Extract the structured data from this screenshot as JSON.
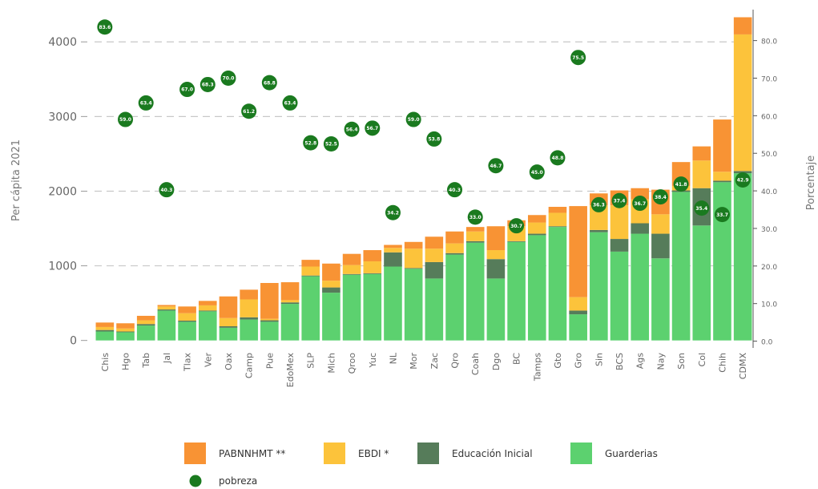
{
  "chart_data": {
    "type": "bar",
    "stacked": true,
    "categories": [
      "Chis",
      "Hgo",
      "Tab",
      "Jal",
      "Tlax",
      "Ver",
      "Oax",
      "Camp",
      "Pue",
      "EdoMex",
      "SLP",
      "Mich",
      "Qroo",
      "Yuc",
      "NL",
      "Mor",
      "Zac",
      "Qro",
      "Coah",
      "Dgo",
      "BC",
      "Tamps",
      "Gto",
      "Gro",
      "Sin",
      "BCS",
      "Ags",
      "Nay",
      "Son",
      "Col",
      "Chih",
      "CDMX"
    ],
    "series": [
      {
        "name": "Guarderias",
        "color": "#5cd16f",
        "values": [
          120,
          110,
          200,
          400,
          250,
          390,
          170,
          280,
          250,
          490,
          860,
          640,
          880,
          890,
          990,
          960,
          830,
          1150,
          1310,
          830,
          1320,
          1410,
          1520,
          350,
          1450,
          1190,
          1430,
          1100,
          1990,
          1540,
          2120,
          2240
        ]
      },
      {
        "name": "Educación Inicial",
        "color": "#567c5a",
        "values": [
          20,
          10,
          20,
          15,
          15,
          10,
          20,
          30,
          20,
          20,
          10,
          70,
          10,
          10,
          190,
          10,
          220,
          20,
          20,
          260,
          10,
          20,
          10,
          50,
          30,
          170,
          140,
          330,
          20,
          500,
          20,
          30
        ]
      },
      {
        "name": "EBDI *",
        "color": "#fcc33b",
        "values": [
          40,
          40,
          50,
          40,
          100,
          70,
          110,
          240,
          20,
          30,
          120,
          90,
          120,
          160,
          60,
          260,
          180,
          130,
          130,
          120,
          200,
          150,
          180,
          180,
          330,
          450,
          320,
          260,
          60,
          370,
          120,
          1830
        ]
      },
      {
        "name": "PABNNHMT **",
        "color": "#f89334",
        "values": [
          60,
          70,
          60,
          20,
          90,
          60,
          290,
          130,
          480,
          240,
          90,
          230,
          150,
          150,
          40,
          90,
          160,
          160,
          60,
          320,
          80,
          100,
          80,
          1220,
          160,
          200,
          150,
          330,
          320,
          190,
          700,
          230
        ]
      }
    ],
    "dots": {
      "name": "pobreza",
      "color": "#1a7a1f",
      "values": [
        83.6,
        59.0,
        63.4,
        40.3,
        67.0,
        68.3,
        70.0,
        61.2,
        68.8,
        63.4,
        52.8,
        52.5,
        56.4,
        56.7,
        34.2,
        59.0,
        53.8,
        40.3,
        33.0,
        46.7,
        30.7,
        45.0,
        48.8,
        75.5,
        36.3,
        37.4,
        36.7,
        38.4,
        41.8,
        35.4,
        33.7,
        42.9
      ],
      "labels": [
        "83.6",
        "59.0",
        "63.4",
        "40.3",
        "67.0",
        "68.3",
        "70.0",
        "61.2",
        "68.8",
        "63.4",
        "52.8",
        "52.5",
        "56.4",
        "56.7",
        "34.2",
        "59.0",
        "53.8",
        "40.3",
        "33.0",
        "46.7",
        "30.7",
        "45.0",
        "48.8",
        "75.5",
        "36.3",
        "37.4",
        "36.7",
        "38.4",
        "41.8",
        "35.4",
        "33.7",
        "42.9"
      ]
    },
    "ylabel": "Per cápita 2021",
    "ylabel_right": "Porcentaje",
    "ylim": [
      -100,
      4400
    ],
    "yticks": [
      0,
      1000,
      2000,
      3000,
      4000
    ],
    "ylim_right": [
      -1.8,
      87.6
    ],
    "yticks_right": [
      0,
      10,
      20,
      30,
      40,
      50,
      60,
      70,
      80
    ],
    "yticks_right_labels": [
      "0.0",
      "10.0",
      "20.0",
      "30.0",
      "40.0",
      "50.0",
      "60.0",
      "70.0",
      "80.0"
    ],
    "grid": "horizontal dashed",
    "legend": {
      "position": "bottom",
      "items": [
        "PABNNHMT **",
        "EBDI *",
        "Educación Inicial",
        "Guarderias",
        "pobreza"
      ]
    }
  }
}
